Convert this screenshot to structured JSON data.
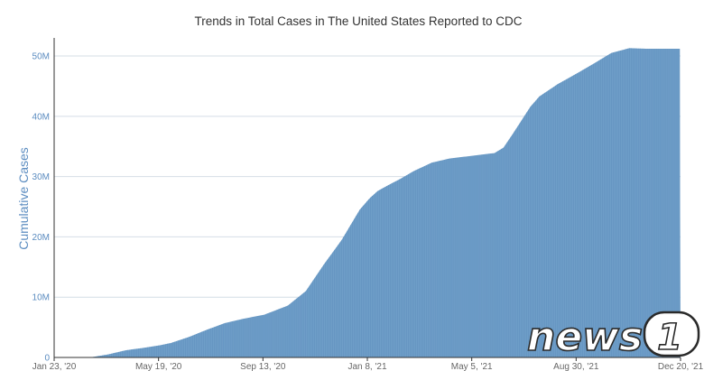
{
  "chart_data": {
    "type": "area",
    "title": "Trends in Total Cases in The United States Reported to CDC",
    "xlabel": "",
    "ylabel": "Cumulative Cases",
    "x_ticks": [
      "Jan 23, '20",
      "May 19, '20",
      "Sep 13, '20",
      "Jan 8, '21",
      "May 5, '21",
      "Aug 30, '21",
      "Dec 20, '21"
    ],
    "y_ticks": [
      "0",
      "10M",
      "20M",
      "30M",
      "40M",
      "50M"
    ],
    "ylim": [
      0,
      53000000
    ],
    "x_range_days": [
      0,
      697
    ],
    "grid": true,
    "color": "#6f9ec8",
    "series": [
      {
        "name": "Cumulative Cases",
        "x_days": [
          0,
          40,
          60,
          80,
          100,
          117,
          130,
          150,
          170,
          190,
          210,
          234,
          260,
          280,
          300,
          320,
          340,
          351,
          360,
          372,
          385,
          400,
          420,
          440,
          468,
          490,
          500,
          510,
          520,
          530,
          540,
          560,
          585,
          600,
          620,
          640,
          660,
          680,
          697
        ],
        "values": [
          0,
          10000,
          500000,
          1200000,
          1600000,
          2000000,
          2400000,
          3400000,
          4600000,
          5700000,
          6400000,
          7100000,
          8600000,
          11000000,
          15400000,
          19500000,
          24500000,
          26400000,
          27600000,
          28600000,
          29600000,
          30900000,
          32300000,
          33000000,
          33500000,
          33900000,
          34800000,
          37000000,
          39300000,
          41600000,
          43300000,
          45300000,
          47400000,
          48700000,
          50500000,
          51300000,
          51200000,
          51200000,
          51200000
        ]
      }
    ]
  },
  "watermark": {
    "text": "news",
    "badge": "1"
  }
}
